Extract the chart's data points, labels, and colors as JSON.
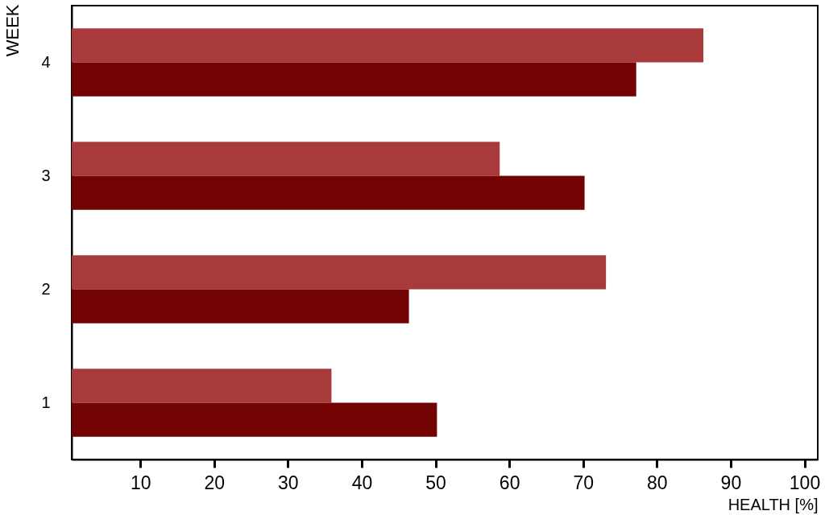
{
  "chart_data": {
    "type": "bar",
    "orientation": "horizontal",
    "ylabel": "WEEK",
    "xlabel": "HEALTH [%]",
    "categories": [
      "4",
      "3",
      "2",
      "1"
    ],
    "series": [
      {
        "color": "#a83a3c",
        "values": [
          86.3,
          58.7,
          73.1,
          35.9
        ]
      },
      {
        "color": "#730303",
        "values": [
          77.2,
          70.2,
          46.4,
          50.2
        ]
      }
    ],
    "xlim": [
      0.7,
      101.8
    ],
    "xticks": [
      10,
      20,
      30,
      40,
      50,
      60,
      70,
      80,
      90,
      100
    ]
  }
}
